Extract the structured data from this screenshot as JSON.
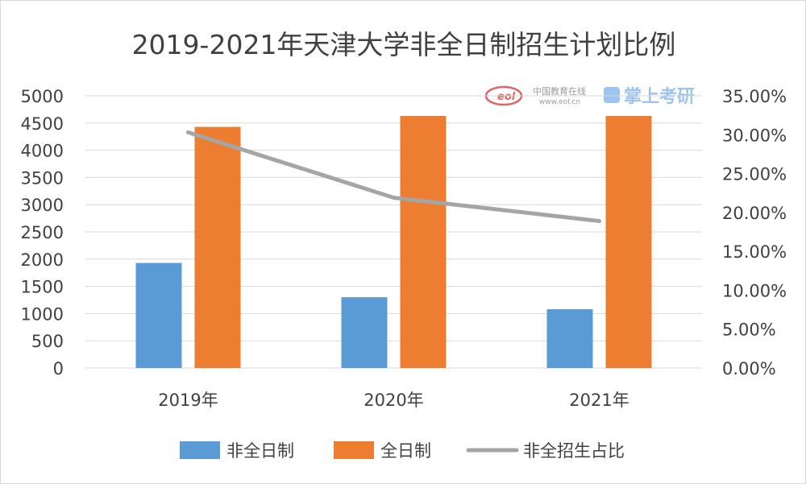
{
  "chart_data": {
    "type": "bar",
    "title": "2019-2021年天津大学非全日制招生计划比例",
    "categories": [
      "2019年",
      "2020年",
      "2021年"
    ],
    "series": [
      {
        "name": "非全日制",
        "type": "bar",
        "axis": "left",
        "color": "#5B9BD5",
        "values": [
          1930,
          1300,
          1080
        ]
      },
      {
        "name": "全日制",
        "type": "bar",
        "axis": "left",
        "color": "#ED7D31",
        "values": [
          4430,
          4630,
          4630
        ]
      },
      {
        "name": "非全招生占比",
        "type": "line",
        "axis": "right",
        "color": "#A5A5A5",
        "values": [
          30.3,
          21.9,
          18.9
        ]
      }
    ],
    "y_left": {
      "min": 0,
      "max": 5000,
      "step": 500,
      "tick_labels": [
        "0",
        "500",
        "1000",
        "1500",
        "2000",
        "2500",
        "3000",
        "3500",
        "4000",
        "4500",
        "5000"
      ]
    },
    "y_right": {
      "min": 0,
      "max": 35,
      "step": 5,
      "tick_labels": [
        "0.00%",
        "5.00%",
        "10.00%",
        "15.00%",
        "20.00%",
        "25.00%",
        "30.00%",
        "35.00%"
      ]
    },
    "grid": true,
    "legend_position": "bottom"
  },
  "watermark": {
    "logo_text": "eol",
    "site_name": "中国教育在线",
    "site_url": "www.eol.cn",
    "brand": "掌上考研"
  },
  "colors": {
    "gridline": "#d9d9d9",
    "text": "#404040"
  }
}
